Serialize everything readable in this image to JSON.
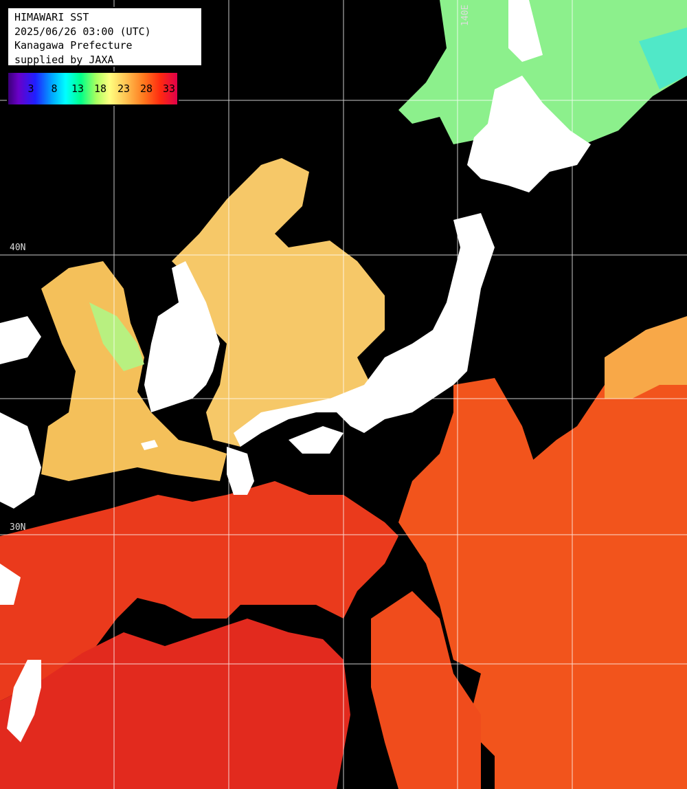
{
  "info": {
    "title": "HIMAWARI SST",
    "datetime": "2025/06/26 03:00 (UTC)",
    "region": "Kanagawa Prefecture",
    "credit": "supplied by JAXA"
  },
  "colorbar": {
    "ticks": [
      "3",
      "8",
      "13",
      "18",
      "23",
      "28",
      "33"
    ]
  },
  "grid_labels": {
    "lat_40": "40N",
    "lat_30": "30N",
    "lon_140": "140E"
  },
  "colors": {
    "cloud": "#000000",
    "land": "#ffffff",
    "grid": "#ffffff",
    "sst_warm": "#f0501e",
    "sst_hot": "#e8281e",
    "sst_mild": "#f8c060",
    "sst_cool": "#90f088"
  }
}
